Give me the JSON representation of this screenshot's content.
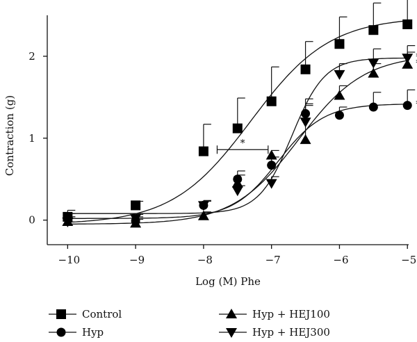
{
  "chart_data": {
    "type": "line",
    "xlabel": "Log (M) Phe",
    "ylabel": "Contraction (g)",
    "xlim": [
      -10.3,
      -4.9
    ],
    "ylim": [
      -0.3,
      2.5
    ],
    "x_ticks": [
      -10,
      -9,
      -8,
      -7,
      -6,
      -5
    ],
    "x_tick_labels": [
      "−10",
      "−9",
      "−8",
      "−7",
      "−6",
      "−5"
    ],
    "y_ticks": [
      0,
      1,
      2
    ],
    "y_tick_labels": [
      "0",
      "1",
      "2"
    ],
    "grid": false,
    "legend_position": "bottom",
    "x": [
      -10,
      -9,
      -8,
      -7.5,
      -7,
      -6.5,
      -6,
      -5.5,
      -5
    ],
    "series": [
      {
        "name": "Control",
        "marker": "square",
        "values": [
          0.04,
          0.18,
          0.84,
          1.12,
          1.45,
          1.84,
          2.15,
          2.32,
          2.39
        ],
        "errors": [
          0.08,
          0.05,
          0.33,
          0.37,
          0.42,
          0.34,
          0.33,
          0.33,
          0.35
        ],
        "fit": {
          "bottom": -0.05,
          "top": 2.48,
          "logEC50": -7.3,
          "hill": 0.75
        }
      },
      {
        "name": "Hyp",
        "marker": "circle",
        "values": [
          0.02,
          -0.01,
          0.18,
          0.5,
          0.67,
          1.3,
          1.28,
          1.38,
          1.4
        ],
        "errors": [
          0.06,
          0.05,
          0.06,
          0.1,
          0.1,
          0.1,
          0.1,
          0.18,
          0.19
        ],
        "fit": {
          "bottom": 0.02,
          "top": 1.42,
          "logEC50": -6.9,
          "hill": 1.3
        },
        "annotation": "*"
      },
      {
        "name": "Hyp + HEJ100",
        "marker": "triangle-up",
        "values": [
          -0.02,
          -0.04,
          0.05,
          0.45,
          0.79,
          0.98,
          1.52,
          1.79,
          1.9
        ],
        "errors": [
          0.06,
          0.05,
          0.05,
          0.1,
          0.06,
          0.5,
          0.12,
          0.12,
          0.15
        ],
        "fit": {
          "bottom": -0.05,
          "top": 2.02,
          "logEC50": -6.6,
          "hill": 0.9
        },
        "annotation": "*#"
      },
      {
        "name": "Hyp + HEJ300",
        "marker": "triangle-down",
        "values": [
          -0.02,
          0.02,
          0.18,
          0.36,
          0.45,
          1.2,
          1.78,
          1.92,
          1.98
        ],
        "errors": [
          0.06,
          0.05,
          0.05,
          0.06,
          0.08,
          0.22,
          0.13,
          0.17,
          0.15
        ],
        "fit": {
          "bottom": 0.08,
          "top": 1.98,
          "logEC50": -6.7,
          "hill": 1.8
        },
        "annotation": "*#"
      }
    ],
    "annotations": [
      {
        "text": "*",
        "bracket_x": [
          -7.8,
          -7.05
        ],
        "y": 0.86
      }
    ]
  }
}
